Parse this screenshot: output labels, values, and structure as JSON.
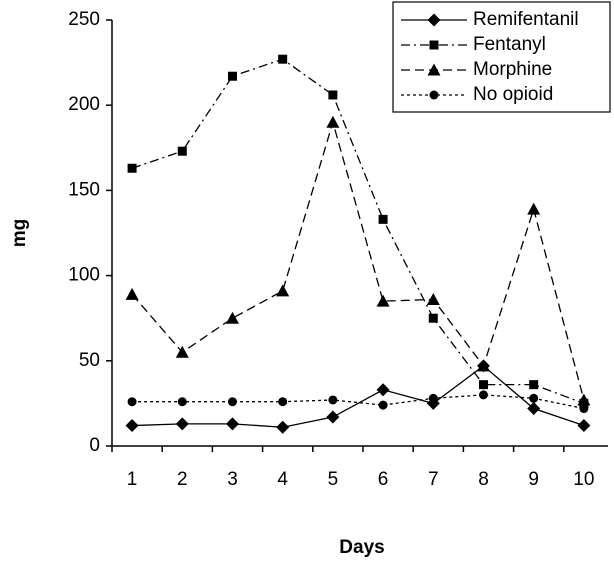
{
  "chart_data": {
    "type": "line",
    "x_label": "Days",
    "y_label": "mg",
    "categories": [
      "1",
      "2",
      "3",
      "4",
      "5",
      "6",
      "7",
      "8",
      "9",
      "10"
    ],
    "series": [
      {
        "name": "Remifentanil",
        "color": "#000000",
        "marker": "diamond",
        "dash": "solid",
        "values": [
          12,
          13,
          13,
          11,
          17,
          33,
          25,
          47,
          22,
          12
        ]
      },
      {
        "name": "Fentanyl",
        "color": "#000000",
        "marker": "square",
        "dash": "dashdot",
        "values": [
          163,
          173,
          217,
          227,
          206,
          133,
          75,
          36,
          36,
          25
        ]
      },
      {
        "name": "Morphine",
        "color": "#000000",
        "marker": "triangle",
        "dash": "dashed",
        "values": [
          89,
          55,
          75,
          91,
          190,
          85,
          86,
          47,
          139,
          27
        ]
      },
      {
        "name": "No opioid",
        "color": "#000000",
        "marker": "circle",
        "dash": "dotted",
        "values": [
          26,
          26,
          26,
          26,
          27,
          24,
          28,
          30,
          28,
          22
        ]
      }
    ],
    "ylim": [
      0,
      250
    ],
    "yticks": [
      0,
      50,
      100,
      150,
      200,
      250
    ],
    "grid": false,
    "legend": "upper right"
  }
}
